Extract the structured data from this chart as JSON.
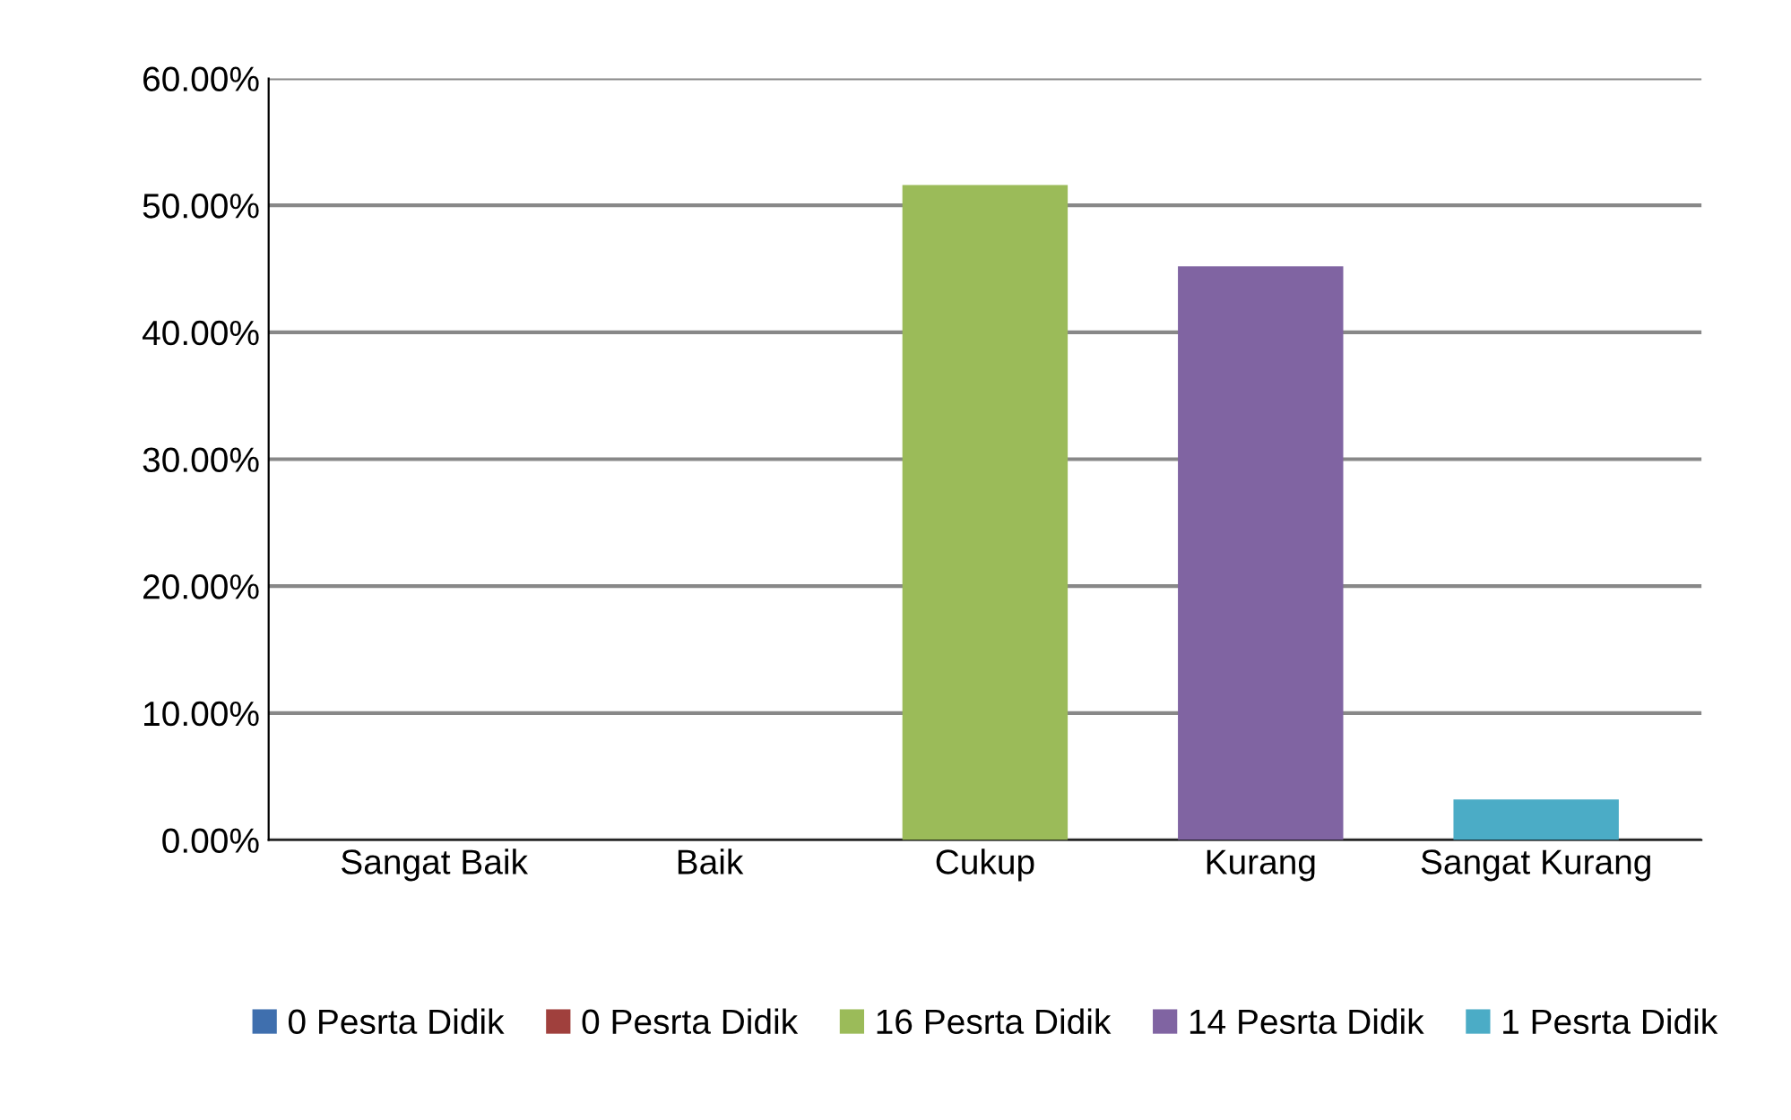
{
  "chart_data": {
    "type": "bar",
    "categories": [
      "Sangat Baik",
      "Baik",
      "Cukup",
      "Kurang",
      "Sangat Kurang"
    ],
    "series": [
      {
        "name": "0 Pesrta Didik",
        "color": "#3f6fae",
        "values": [
          0,
          null,
          null,
          null,
          null
        ]
      },
      {
        "name": "0 Pesrta Didik",
        "color": "#a0403d",
        "values": [
          null,
          0,
          null,
          null,
          null
        ]
      },
      {
        "name": "16 Pesrta Didik",
        "color": "#9bbb59",
        "values": [
          null,
          null,
          51.6,
          null,
          null
        ]
      },
      {
        "name": "14 Pesrta Didik",
        "color": "#8064a2",
        "values": [
          null,
          null,
          null,
          45.2,
          null
        ]
      },
      {
        "name": "1 Pesrta Didik",
        "color": "#4bacc6",
        "values": [
          null,
          null,
          null,
          null,
          3.2
        ]
      }
    ],
    "ylim": [
      0,
      60
    ],
    "yticks": [
      {
        "value": 0,
        "label": "0.00%"
      },
      {
        "value": 10,
        "label": "10.00%"
      },
      {
        "value": 20,
        "label": "20.00%"
      },
      {
        "value": 30,
        "label": "30.00%"
      },
      {
        "value": 40,
        "label": "40.00%"
      },
      {
        "value": 50,
        "label": "50.00%"
      },
      {
        "value": 60,
        "label": "60.00%"
      }
    ],
    "grid": "y",
    "legend": "bottom"
  }
}
